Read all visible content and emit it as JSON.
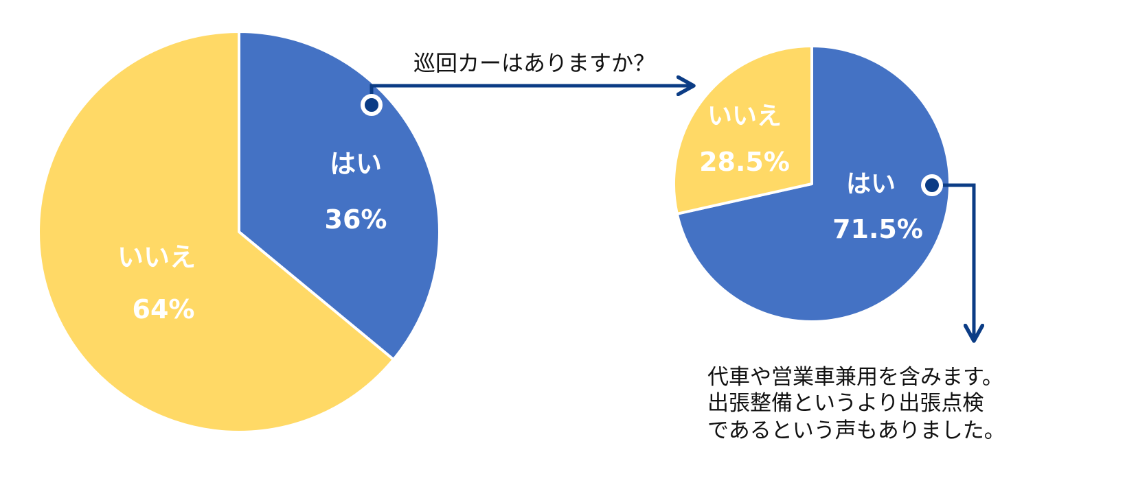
{
  "colors": {
    "yes": "#4472C4",
    "no": "#FFD966",
    "arrow": "#0B3C85",
    "text": "#111111",
    "label": "#FFFFFF"
  },
  "chart_data": [
    {
      "type": "pie",
      "slices": [
        {
          "label": "はい",
          "value": 36,
          "value_label": "36%",
          "color": "#4472C4"
        },
        {
          "label": "いいえ",
          "value": 64,
          "value_label": "64%",
          "color": "#FFD966"
        }
      ]
    },
    {
      "type": "pie",
      "slices": [
        {
          "label": "はい",
          "value": 71.5,
          "value_label": "71.5%",
          "color": "#4472C4"
        },
        {
          "label": "いいえ",
          "value": 28.5,
          "value_label": "28.5%",
          "color": "#FFD966"
        }
      ]
    }
  ],
  "annotations": {
    "question": "巡回カーはありますか？",
    "note_lines": [
      "代車や営業車兼用を含みます。",
      "出張整備というより出張点検",
      "であるという声もありました。"
    ]
  }
}
